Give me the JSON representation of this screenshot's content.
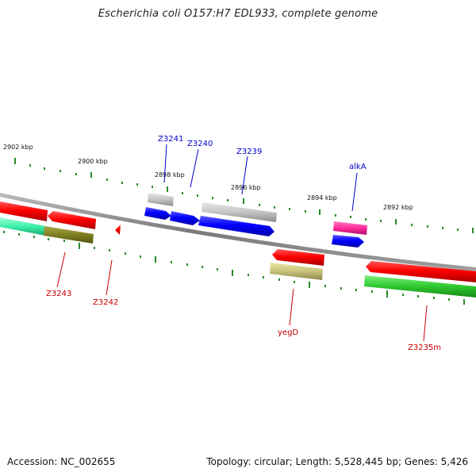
{
  "header": {
    "title": "Escherichia coli O157:H7 EDL933, complete genome"
  },
  "footer": {
    "accession": "Accession: NC_002655",
    "summary": "Topology: circular; Length: 5,528,445 bp; Genes: 5,426"
  },
  "colors": {
    "forward_label": "#0000cc",
    "reverse_label": "#cc0000",
    "backbone": "#888888",
    "ticks": "#2a8a2a"
  },
  "scale_labels": [
    "2902 kbp",
    "2900 kbp",
    "2898 kbp",
    "2896 kbp",
    "2894 kbp",
    "2892 kbp"
  ],
  "genes": [
    {
      "name": "Z3241",
      "strand": "forward",
      "color": "#0000ee"
    },
    {
      "name": "Z3240",
      "strand": "forward",
      "color": "#0000ee"
    },
    {
      "name": "Z3239",
      "strand": "forward",
      "color": "#0000ee"
    },
    {
      "name": "alkA",
      "strand": "forward",
      "color": "#0000ee"
    },
    {
      "name": "Z3243",
      "strand": "reverse",
      "color": "#ee0000"
    },
    {
      "name": "Z3242",
      "strand": "reverse",
      "color": "#ee0000"
    },
    {
      "name": "yegD",
      "strand": "reverse",
      "color": "#ee0000"
    },
    {
      "name": "Z3235m",
      "strand": "reverse",
      "color": "#ee0000"
    }
  ]
}
